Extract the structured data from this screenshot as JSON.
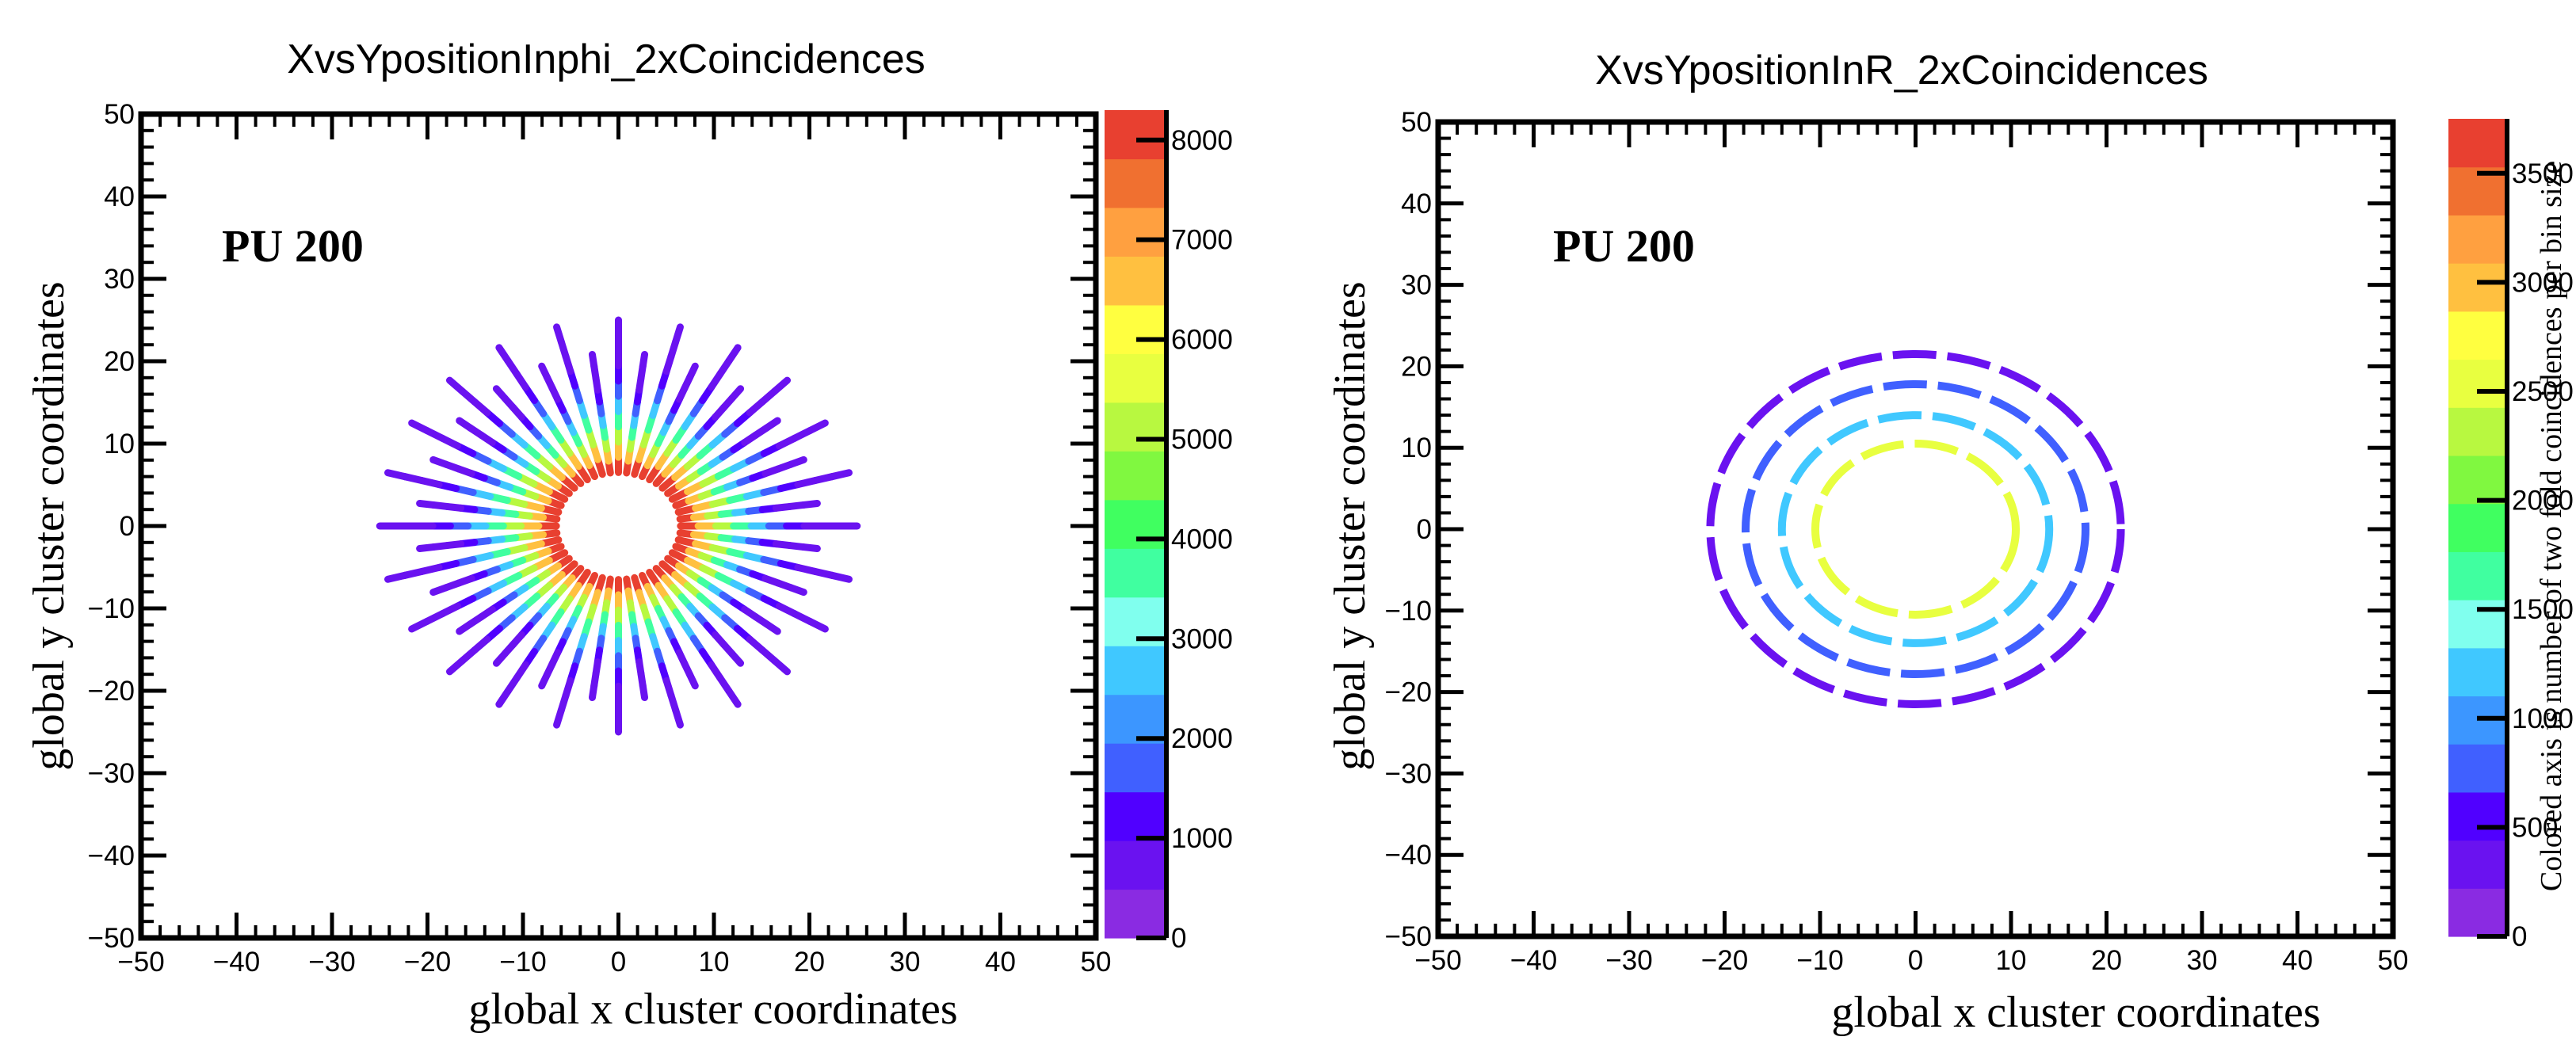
{
  "palette": [
    "#8a2be2",
    "#6a12f0",
    "#5000ff",
    "#4060ff",
    "#3c96ff",
    "#40c8ff",
    "#80ffee",
    "#40ffa0",
    "#40ff60",
    "#80f840",
    "#b8f840",
    "#e8ff40",
    "#ffff40",
    "#ffc040",
    "#ffa040",
    "#f07030",
    "#e84030"
  ],
  "chart_data": [
    {
      "type": "heatmap",
      "title": "XvsYpositionInphi_2xCoincidences",
      "xlabel": "global x cluster coordinates",
      "ylabel": "global y cluster coordinates",
      "annotation": "PU 200",
      "xlim": [
        -50,
        50
      ],
      "ylim": [
        -50,
        50
      ],
      "x_ticks": [
        -50,
        -40,
        -30,
        -20,
        -10,
        0,
        10,
        20,
        30,
        40,
        50
      ],
      "y_ticks": [
        -50,
        -40,
        -30,
        -20,
        -10,
        0,
        10,
        20,
        30,
        40,
        50
      ],
      "x_tick_labels": [
        "−50",
        "−40",
        "−30",
        "−20",
        "−10",
        "0",
        "10",
        "20",
        "30",
        "40",
        "50"
      ],
      "y_tick_labels": [
        "−50",
        "−40",
        "−30",
        "−20",
        "−10",
        "0",
        "10",
        "20",
        "30",
        "40",
        "50"
      ],
      "colorbar": {
        "range": [
          0,
          8300
        ],
        "ticks": [
          0,
          1000,
          2000,
          3000,
          4000,
          5000,
          6000,
          7000,
          8000
        ],
        "tick_labels": [
          "0",
          "1000",
          "2000",
          "3000",
          "4000",
          "5000",
          "6000",
          "7000",
          "8000"
        ],
        "label": ""
      },
      "pattern": {
        "kind": "radial_spokes",
        "n_spokes": 48,
        "inner_radius": 6.5,
        "outer_radius_short": 21,
        "outer_radius_long": 25,
        "inner_value": 8000,
        "outer_value": 600
      },
      "grid": false,
      "legend": "none"
    },
    {
      "type": "heatmap",
      "title": "XvsYpositionInR_2xCoincidences",
      "xlabel": "global x cluster coordinates",
      "ylabel": "global y cluster coordinates",
      "annotation": "PU 200",
      "xlim": [
        -50,
        50
      ],
      "ylim": [
        -50,
        50
      ],
      "x_ticks": [
        -50,
        -40,
        -30,
        -20,
        -10,
        0,
        10,
        20,
        30,
        40,
        50
      ],
      "y_ticks": [
        -50,
        -40,
        -30,
        -20,
        -10,
        0,
        10,
        20,
        30,
        40,
        50
      ],
      "x_tick_labels": [
        "−50",
        "−40",
        "−30",
        "−20",
        "−10",
        "0",
        "10",
        "20",
        "30",
        "40",
        "50"
      ],
      "y_tick_labels": [
        "−50",
        "−40",
        "−30",
        "−20",
        "−10",
        "0",
        "10",
        "20",
        "30",
        "40",
        "50"
      ],
      "colorbar": {
        "range": [
          0,
          3750
        ],
        "ticks": [
          0,
          500,
          1000,
          1500,
          2000,
          2500,
          3000,
          3500
        ],
        "tick_labels": [
          "0",
          "500",
          "1000",
          "1500",
          "2000",
          "2500",
          "3000",
          "3500"
        ],
        "label": "Colored axis is number of two fold coincidences per bin size"
      },
      "pattern": {
        "kind": "concentric_rings",
        "rings": [
          {
            "radius": 10.5,
            "value": 2600
          },
          {
            "radius": 14.0,
            "value": 1300
          },
          {
            "radius": 17.8,
            "value": 700
          },
          {
            "radius": 21.5,
            "value": 400
          }
        ]
      },
      "grid": false,
      "legend": "none"
    }
  ]
}
